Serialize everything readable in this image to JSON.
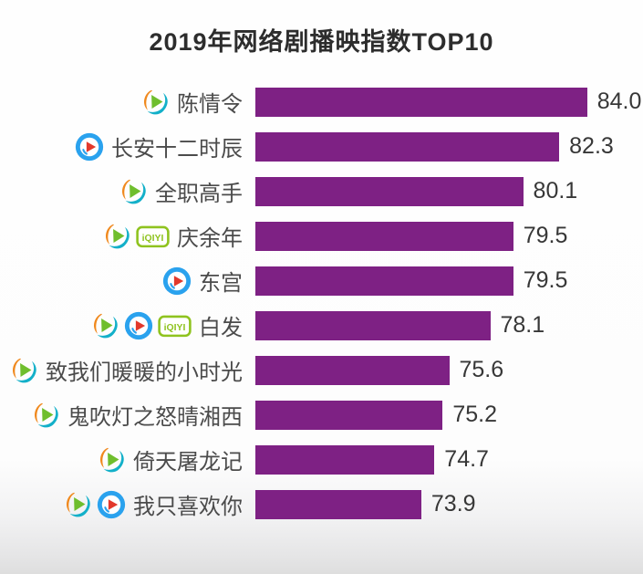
{
  "title": "2019年网络剧播映指数TOP10",
  "colors": {
    "bar": "#7e2184",
    "title_text": "#2d2d2d",
    "label_text": "#4b4b4b",
    "value_text": "#373737",
    "tencent_orange": "#f0891e",
    "tencent_green": "#6fbe2d",
    "tencent_teal": "#13b0c9",
    "youku_blue": "#2aa2ee",
    "youku_red": "#e2392c",
    "iqiyi_green": "#8fc31f"
  },
  "iqiyi_badge_text": "iQIYI",
  "chart_data": {
    "type": "bar",
    "orientation": "horizontal",
    "title": "2019年网络剧播映指数TOP10",
    "categories": [
      "陈情令",
      "长安十二时辰",
      "全职高手",
      "庆余年",
      "东宫",
      "白发",
      "致我们暖暖的小时光",
      "鬼吹灯之怒晴湘西",
      "倚天屠龙记",
      "我只喜欢你"
    ],
    "values": [
      84.0,
      82.3,
      80.1,
      79.5,
      79.5,
      78.1,
      75.6,
      75.2,
      74.7,
      73.9
    ],
    "value_labels": [
      "84.0",
      "82.3",
      "80.1",
      "79.5",
      "79.5",
      "78.1",
      "75.6",
      "75.2",
      "74.7",
      "73.9"
    ],
    "platforms": [
      [
        "tencent-video"
      ],
      [
        "youku"
      ],
      [
        "tencent-video"
      ],
      [
        "tencent-video",
        "iqiyi"
      ],
      [
        "youku"
      ],
      [
        "tencent-video",
        "youku",
        "iqiyi"
      ],
      [
        "tencent-video"
      ],
      [
        "tencent-video"
      ],
      [
        "tencent-video"
      ],
      [
        "tencent-video",
        "youku"
      ]
    ],
    "xlabel": "",
    "ylabel": "",
    "xlim": [
      63.8,
      87.4
    ],
    "bar_color": "#7e2184",
    "grid": false,
    "legend": false
  }
}
